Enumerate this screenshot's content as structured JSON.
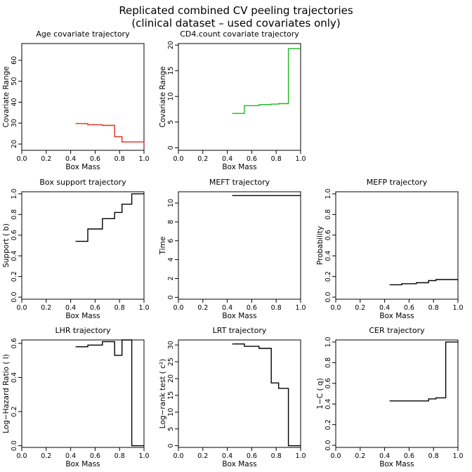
{
  "figure": {
    "title_lines": [
      "Replicated combined CV peeling trajectories",
      "(clinical dataset – used covariates only)"
    ]
  },
  "chart_data": [
    {
      "type": "line",
      "step": true,
      "title": "Age covariate trajectory",
      "xlabel": "Box Mass",
      "ylabel": "Covariate Range",
      "xlim": [
        0,
        1
      ],
      "ylim": [
        17,
        68
      ],
      "xticks": [
        0.0,
        0.2,
        0.4,
        0.6,
        0.8,
        1.0
      ],
      "yticks": [
        20,
        30,
        40,
        50,
        60
      ],
      "series": [
        {
          "color": "#e8281e",
          "x": [
            0.44,
            0.54,
            0.66,
            0.76,
            0.82,
            1.0
          ],
          "y": [
            29.8,
            29.2,
            28.9,
            23.5,
            21.0,
            19.0
          ]
        }
      ]
    },
    {
      "type": "line",
      "step": true,
      "title": "CD4.count covariate trajectory",
      "xlabel": "Box Mass",
      "ylabel": "Covariate Range",
      "xlim": [
        0,
        1
      ],
      "ylim": [
        -0.5,
        20.3
      ],
      "xticks": [
        0.0,
        0.2,
        0.4,
        0.6,
        0.8,
        1.0
      ],
      "yticks": [
        0,
        5,
        10,
        15,
        20
      ],
      "series": [
        {
          "color": "#1fb81f",
          "x": [
            0.44,
            0.54,
            0.66,
            0.76,
            0.82,
            0.9,
            1.0
          ],
          "y": [
            6.7,
            8.2,
            8.4,
            8.5,
            8.6,
            19.3,
            19.3
          ]
        }
      ]
    },
    {
      "type": "line",
      "step": true,
      "title": "Box support trajectory",
      "xlabel": "Box Mass",
      "ylabel": "Support ( b)",
      "xlim": [
        0,
        1
      ],
      "ylim": [
        -0.02,
        1.02
      ],
      "xticks": [
        0.0,
        0.2,
        0.4,
        0.6,
        0.8,
        1.0
      ],
      "yticks": [
        0.0,
        0.2,
        0.4,
        0.6,
        0.8,
        1.0
      ],
      "series": [
        {
          "color": "#000000",
          "x": [
            0.44,
            0.54,
            0.66,
            0.76,
            0.82,
            0.9,
            1.0
          ],
          "y": [
            0.54,
            0.66,
            0.76,
            0.82,
            0.9,
            1.0,
            1.0
          ]
        }
      ]
    },
    {
      "type": "line",
      "step": true,
      "title": "MEFT trajectory",
      "xlabel": "Box Mass",
      "ylabel": "Time",
      "xlim": [
        0,
        1
      ],
      "ylim": [
        -0.2,
        11.2
      ],
      "xticks": [
        0.0,
        0.2,
        0.4,
        0.6,
        0.8,
        1.0
      ],
      "yticks": [
        0,
        2,
        4,
        6,
        8,
        10
      ],
      "series": [
        {
          "color": "#000000",
          "x": [
            0.44,
            1.0
          ],
          "y": [
            10.8,
            10.8
          ]
        }
      ]
    },
    {
      "type": "line",
      "step": true,
      "title": "MEFP trajectory",
      "xlabel": "Box Mass",
      "ylabel": "Probability",
      "xlim": [
        0,
        1
      ],
      "ylim": [
        -0.02,
        1.02
      ],
      "xticks": [
        0.0,
        0.2,
        0.4,
        0.6,
        0.8,
        1.0
      ],
      "yticks": [
        0.0,
        0.2,
        0.4,
        0.6,
        0.8,
        1.0
      ],
      "series": [
        {
          "color": "#000000",
          "x": [
            0.44,
            0.54,
            0.66,
            0.76,
            0.82,
            1.0
          ],
          "y": [
            0.12,
            0.13,
            0.14,
            0.16,
            0.17,
            0.17
          ]
        }
      ]
    },
    {
      "type": "line",
      "step": true,
      "title": "LHR trajectory",
      "xlabel": "Box Mass",
      "ylabel": "Log−Hazard Ratio (  l)",
      "xlim": [
        0,
        1
      ],
      "ylim": [
        -0.01,
        0.62
      ],
      "xticks": [
        0.0,
        0.2,
        0.4,
        0.6,
        0.8,
        1.0
      ],
      "yticks": [
        0.0,
        0.2,
        0.4,
        0.6
      ],
      "series": [
        {
          "color": "#000000",
          "x": [
            0.44,
            0.54,
            0.66,
            0.76,
            0.82,
            0.9,
            1.0
          ],
          "y": [
            0.58,
            0.59,
            0.61,
            0.53,
            0.62,
            0.0,
            0.0
          ]
        }
      ]
    },
    {
      "type": "line",
      "step": true,
      "title": "LRT trajectory",
      "xlabel": "Box Mass",
      "ylabel": "Log−rank test (  c²)",
      "xlim": [
        0,
        1
      ],
      "ylim": [
        -0.5,
        31.5
      ],
      "xticks": [
        0.0,
        0.2,
        0.4,
        0.6,
        0.8,
        1.0
      ],
      "yticks": [
        0,
        5,
        10,
        15,
        20,
        25,
        30
      ],
      "series": [
        {
          "color": "#000000",
          "x": [
            0.44,
            0.54,
            0.66,
            0.76,
            0.82,
            0.9,
            1.0
          ],
          "y": [
            30.3,
            29.6,
            29.0,
            18.7,
            17.1,
            0.0,
            0.0
          ]
        }
      ]
    },
    {
      "type": "line",
      "step": true,
      "title": "CER trajectory",
      "xlabel": "Box Mass",
      "ylabel": "1−C ( q)",
      "xlim": [
        0,
        1
      ],
      "ylim": [
        -0.02,
        1.02
      ],
      "xticks": [
        0.0,
        0.2,
        0.4,
        0.6,
        0.8,
        1.0
      ],
      "yticks": [
        0.0,
        0.2,
        0.4,
        0.6,
        0.8,
        1.0
      ],
      "series": [
        {
          "color": "#000000",
          "x": [
            0.44,
            0.76,
            0.82,
            0.9,
            1.0
          ],
          "y": [
            0.43,
            0.45,
            0.46,
            1.0,
            1.0
          ]
        }
      ]
    }
  ]
}
